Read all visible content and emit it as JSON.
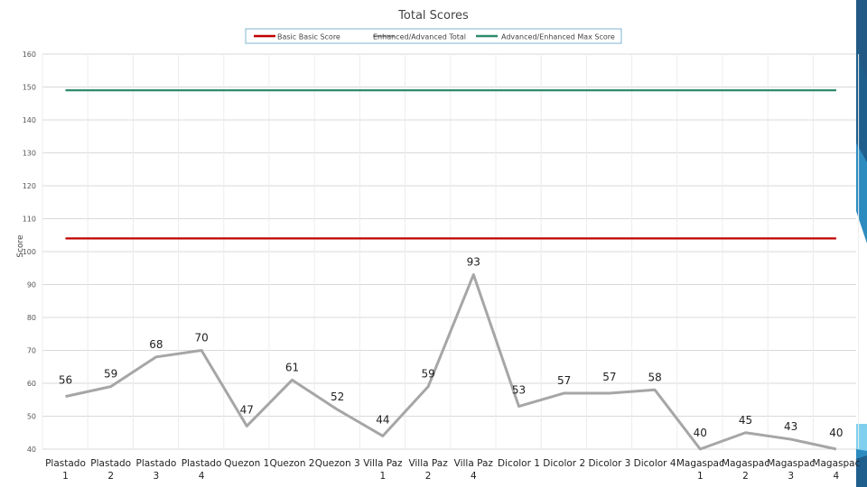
{
  "chart_data": {
    "type": "line",
    "title": "Total Scores",
    "ylabel": "Score",
    "xlabel": "",
    "ylim": [
      40,
      160
    ],
    "yticks": [
      40,
      50,
      60,
      70,
      80,
      90,
      100,
      110,
      120,
      130,
      140,
      150,
      160
    ],
    "grid": true,
    "legend_position": "top-center",
    "categories": [
      [
        "Plastado",
        "1"
      ],
      [
        "Plastado",
        "2"
      ],
      [
        "Plastado",
        "3"
      ],
      [
        "Plastado",
        "4"
      ],
      [
        "Quezon 1",
        ""
      ],
      [
        "Quezon 2",
        ""
      ],
      [
        "Quezon 3",
        ""
      ],
      [
        "Villa Paz",
        "1"
      ],
      [
        "Villa Paz",
        "2"
      ],
      [
        "Villa Paz",
        "4"
      ],
      [
        "Dicolor 1",
        ""
      ],
      [
        "Dicolor 2",
        ""
      ],
      [
        "Dicolor 3",
        ""
      ],
      [
        "Dicolor 4",
        ""
      ],
      [
        "Magaspac",
        "1"
      ],
      [
        "Magaspac",
        "2"
      ],
      [
        "Magaspac",
        "3"
      ],
      [
        "Magaspac",
        "4"
      ]
    ],
    "series": [
      {
        "name": "Basic Basic Score",
        "color": "#c00000",
        "values": [
          104,
          104,
          104,
          104,
          104,
          104,
          104,
          104,
          104,
          104,
          104,
          104,
          104,
          104,
          104,
          104,
          104,
          104
        ],
        "labels": false
      },
      {
        "name": "Enhanced/Advanced Total",
        "color": "#a6a6a6",
        "values": [
          56,
          59,
          68,
          70,
          47,
          61,
          52,
          44,
          59,
          93,
          53,
          57,
          57,
          58,
          40,
          45,
          43,
          40
        ],
        "labels": true
      },
      {
        "name": "Advanced/Enhanced Max Score",
        "color": "#2e8b6e",
        "values": [
          149,
          149,
          149,
          149,
          149,
          149,
          149,
          149,
          149,
          149,
          149,
          149,
          149,
          149,
          149,
          149,
          149,
          149
        ],
        "labels": false
      }
    ]
  }
}
